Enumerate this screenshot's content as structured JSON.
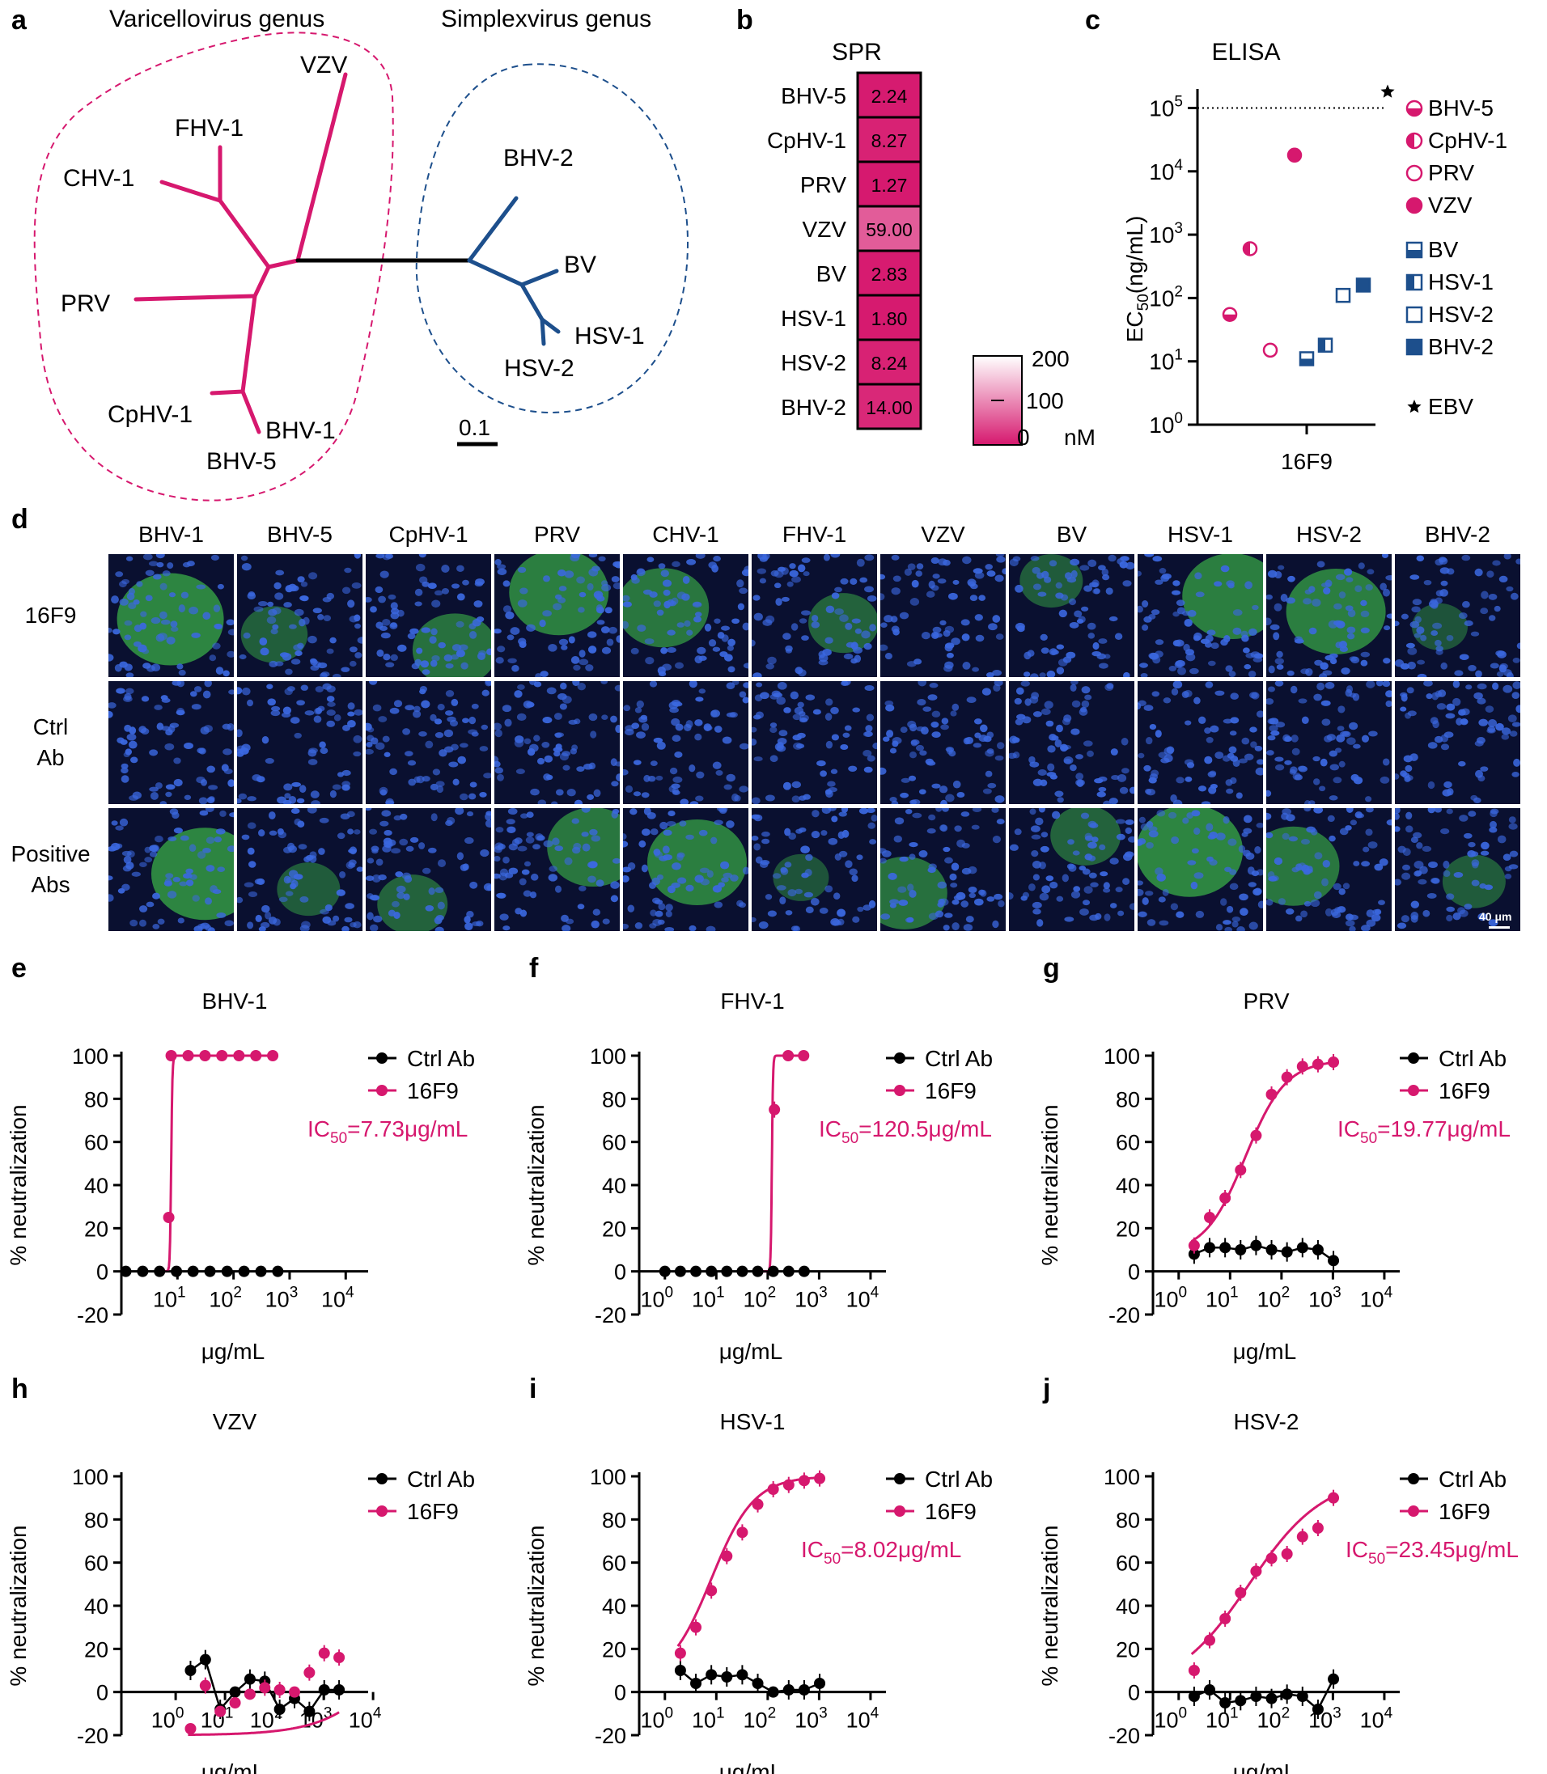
{
  "colors": {
    "pink": "#d6186e",
    "blue": "#1d4f8c",
    "black": "#000000",
    "micro_bg": "#0a1030",
    "nucleus": "#3b68e0",
    "gfp": "#3fbf4a"
  },
  "panel_a": {
    "letter": "a",
    "varicello_title": "Varicellovirus genus",
    "simplex_title": "Simplexvirus genus",
    "leaves": [
      "VZV",
      "FHV-1",
      "CHV-1",
      "PRV",
      "CpHV-1",
      "BHV-1",
      "BHV-5",
      "BHV-2",
      "BV",
      "HSV-1",
      "HSV-2"
    ],
    "scale": "0.1"
  },
  "panel_b": {
    "letter": "b",
    "title": "SPR",
    "rows": [
      {
        "label": "BHV-5",
        "value": "2.24"
      },
      {
        "label": "CpHV-1",
        "value": "8.27"
      },
      {
        "label": "PRV",
        "value": "1.27"
      },
      {
        "label": "VZV",
        "value": "59.00"
      },
      {
        "label": "BV",
        "value": "2.83"
      },
      {
        "label": "HSV-1",
        "value": "1.80"
      },
      {
        "label": "HSV-2",
        "value": "8.24"
      },
      {
        "label": "BHV-2",
        "value": "14.00"
      }
    ],
    "scale_ticks": [
      "200",
      "100",
      "0"
    ],
    "scale_unit": "nM"
  },
  "panel_c": {
    "letter": "c",
    "title": "ELISA",
    "ylabel_main": "EC",
    "ylabel_sub": "50",
    "ylabel_unit": "(ng/mL)",
    "y_ticks": [
      {
        "base": "10",
        "exp": "0"
      },
      {
        "base": "10",
        "exp": "1"
      },
      {
        "base": "10",
        "exp": "2"
      },
      {
        "base": "10",
        "exp": "3"
      },
      {
        "base": "10",
        "exp": "4"
      },
      {
        "base": "10",
        "exp": "5"
      }
    ],
    "xlabel": "16F9",
    "points": [
      {
        "name": "BHV-5",
        "value": 55,
        "shape": "circle",
        "fill": "half-bottom",
        "color": "pink"
      },
      {
        "name": "CpHV-1",
        "value": 600,
        "shape": "circle",
        "fill": "half-left",
        "color": "pink"
      },
      {
        "name": "PRV",
        "value": 15,
        "shape": "circle",
        "fill": "open",
        "color": "pink"
      },
      {
        "name": "VZV",
        "value": 18000,
        "shape": "circle",
        "fill": "full",
        "color": "pink"
      },
      {
        "name": "BV",
        "value": 11,
        "shape": "square",
        "fill": "half-bottom",
        "color": "blue"
      },
      {
        "name": "HSV-1",
        "value": 18,
        "shape": "square",
        "fill": "half-left",
        "color": "blue"
      },
      {
        "name": "HSV-2",
        "value": 110,
        "shape": "square",
        "fill": "open",
        "color": "blue"
      },
      {
        "name": "BHV-2",
        "value": 160,
        "shape": "square",
        "fill": "full",
        "color": "blue"
      },
      {
        "name": "EBV",
        "value": 150000,
        "shape": "star",
        "fill": "full",
        "color": "black"
      }
    ]
  },
  "panel_d": {
    "letter": "d",
    "columns": [
      "BHV-1",
      "BHV-5",
      "CpHV-1",
      "PRV",
      "CHV-1",
      "FHV-1",
      "VZV",
      "BV",
      "HSV-1",
      "HSV-2",
      "BHV-2"
    ],
    "rows": [
      {
        "label_lines": [
          "16F9"
        ],
        "gfp": [
          0.8,
          0.25,
          0.5,
          0.7,
          0.6,
          0.3,
          0,
          0.2,
          0.7,
          0.7,
          0.1
        ]
      },
      {
        "label_lines": [
          "Ctrl",
          "Ab"
        ],
        "gfp": [
          0,
          0,
          0,
          0,
          0,
          0,
          0,
          0,
          0,
          0,
          0
        ]
      },
      {
        "label_lines": [
          "Positive",
          "Abs"
        ],
        "gfp": [
          0.8,
          0.2,
          0.3,
          0.6,
          0.7,
          0.1,
          0.5,
          0.3,
          0.8,
          0.6,
          0.2
        ]
      }
    ],
    "scalebar": "40 μm"
  },
  "neut_panels": [
    {
      "letter": "e",
      "title": "BHV-1",
      "ylabel": "% neutralization",
      "xlabel": "μg/mL",
      "legend": [
        "Ctrl Ab",
        "16F9"
      ],
      "ic50_label": "IC",
      "ic50_sub": "50",
      "ic50_value": "=7.73μg/mL",
      "x_ticks": [
        {
          "b": "10",
          "e": "1"
        },
        {
          "b": "10",
          "e": "2"
        },
        {
          "b": "10",
          "e": "3"
        },
        {
          "b": "10",
          "e": "4"
        }
      ],
      "x_tick_exps": [
        1,
        2,
        3,
        4
      ],
      "xlim_log": [
        0,
        4.4
      ],
      "y_ticks": [
        "100",
        "80",
        "60",
        "40",
        "20",
        "0",
        "-20"
      ],
      "ab": {
        "x": [
          7.73,
          15.5,
          31,
          62,
          125,
          250,
          500
        ],
        "y": [
          100,
          100,
          100,
          100,
          100,
          100,
          100
        ],
        "first": {
          "x": 7,
          "y": 25
        }
      },
      "ctrl": {
        "x": [
          1.2,
          2.4,
          4.8,
          9.6,
          19,
          38,
          77,
          154,
          308,
          616
        ],
        "y": [
          0,
          0,
          0,
          0,
          0,
          0,
          0,
          0,
          0,
          0
        ]
      },
      "fit": {
        "ic50": 7.73,
        "hill": 40,
        "top": 100,
        "bottom": 0
      }
    },
    {
      "letter": "f",
      "title": "FHV-1",
      "ylabel": "% neutralization",
      "xlabel": "μg/mL",
      "legend": [
        "Ctrl Ab",
        "16F9"
      ],
      "ic50_label": "IC",
      "ic50_sub": "50",
      "ic50_value": "=120.5μg/mL",
      "x_ticks": [
        {
          "b": "10",
          "e": "0"
        },
        {
          "b": "10",
          "e": "1"
        },
        {
          "b": "10",
          "e": "2"
        },
        {
          "b": "10",
          "e": "3"
        },
        {
          "b": "10",
          "e": "4"
        }
      ],
      "x_tick_exps": [
        0,
        1,
        2,
        3,
        4
      ],
      "xlim_log": [
        -0.5,
        4.3
      ],
      "y_ticks": [
        "100",
        "80",
        "60",
        "40",
        "20",
        "0",
        "-20"
      ],
      "ab": {
        "x": [
          135,
          250,
          500
        ],
        "y": [
          75,
          100,
          100
        ]
      },
      "ctrl": {
        "x": [
          1,
          2,
          4,
          8,
          16,
          32,
          64,
          128,
          256,
          512
        ],
        "y": [
          0,
          0,
          0,
          0,
          0,
          0,
          0,
          0,
          0,
          0
        ]
      },
      "fit": {
        "ic50": 120.5,
        "hill": 40,
        "top": 100,
        "bottom": 0
      }
    },
    {
      "letter": "g",
      "title": "PRV",
      "ylabel": "% neutralization",
      "xlabel": "μg/mL",
      "legend": [
        "Ctrl Ab",
        "16F9"
      ],
      "ic50_label": "IC",
      "ic50_sub": "50",
      "ic50_value": "=19.77μg/mL",
      "x_ticks": [
        {
          "b": "10",
          "e": "0"
        },
        {
          "b": "10",
          "e": "1"
        },
        {
          "b": "10",
          "e": "2"
        },
        {
          "b": "10",
          "e": "3"
        },
        {
          "b": "10",
          "e": "4"
        }
      ],
      "x_tick_exps": [
        0,
        1,
        2,
        3,
        4
      ],
      "xlim_log": [
        -0.5,
        4.3
      ],
      "y_ticks": [
        "100",
        "80",
        "60",
        "40",
        "20",
        "0",
        "-20"
      ],
      "ab": {
        "x": [
          2,
          4,
          8,
          16,
          32,
          64,
          128,
          256,
          512,
          1024
        ],
        "y": [
          12,
          25,
          34,
          47,
          63,
          82,
          90,
          95,
          96,
          97
        ]
      },
      "ctrl": {
        "x": [
          2,
          4,
          8,
          16,
          32,
          64,
          128,
          256,
          512,
          1024
        ],
        "y": [
          8,
          11,
          11,
          10,
          12,
          10,
          9,
          11,
          10,
          5
        ]
      },
      "fit": {
        "ic50": 19.77,
        "hill": 1.1,
        "top": 98,
        "bottom": 8
      }
    },
    {
      "letter": "h",
      "title": "VZV",
      "ylabel": "% neutralization",
      "xlabel": "μg/mL",
      "legend": [
        "Ctrl Ab",
        "16F9"
      ],
      "ic50_label": "",
      "ic50_sub": "",
      "ic50_value": "",
      "x_ticks": [
        {
          "b": "10",
          "e": "0"
        },
        {
          "b": "10",
          "e": "1"
        },
        {
          "b": "10",
          "e": "2"
        },
        {
          "b": "10",
          "e": "3"
        },
        {
          "b": "10",
          "e": "4"
        }
      ],
      "x_tick_exps": [
        0,
        1,
        2,
        3,
        4
      ],
      "xlim_log": [
        -1.1,
        3.9
      ],
      "y_ticks": [
        "100",
        "80",
        "60",
        "40",
        "20",
        "0",
        "-20"
      ],
      "ab": {
        "x": [
          2,
          4,
          8,
          16,
          32,
          64,
          128,
          256,
          512,
          1024,
          2048
        ],
        "y": [
          -17,
          3,
          -9,
          -5,
          -1,
          2,
          1,
          0,
          9,
          18,
          16
        ]
      },
      "ctrl": {
        "x": [
          2,
          4,
          8,
          16,
          32,
          64,
          128,
          256,
          512,
          1024,
          2048
        ],
        "y": [
          10,
          15,
          -8,
          0,
          6,
          5,
          -8,
          -3,
          -9,
          1,
          1
        ]
      },
      "fit": {
        "ic50": 100000,
        "hill": 0.6,
        "top": 100,
        "bottom": -20
      }
    },
    {
      "letter": "i",
      "title": "HSV-1",
      "ylabel": "% neutralization",
      "xlabel": "μg/mL",
      "legend": [
        "Ctrl Ab",
        "16F9"
      ],
      "ic50_label": "IC",
      "ic50_sub": "50",
      "ic50_value": "=8.02μg/mL",
      "x_ticks": [
        {
          "b": "10",
          "e": "0"
        },
        {
          "b": "10",
          "e": "1"
        },
        {
          "b": "10",
          "e": "2"
        },
        {
          "b": "10",
          "e": "3"
        },
        {
          "b": "10",
          "e": "4"
        }
      ],
      "x_tick_exps": [
        0,
        1,
        2,
        3,
        4
      ],
      "xlim_log": [
        -0.5,
        4.3
      ],
      "y_ticks": [
        "100",
        "80",
        "60",
        "40",
        "20",
        "0",
        "-20"
      ],
      "ab": {
        "x": [
          2,
          4,
          8,
          16,
          32,
          64,
          128,
          256,
          512,
          1024
        ],
        "y": [
          18,
          30,
          47,
          63,
          74,
          87,
          94,
          96,
          98,
          99
        ]
      },
      "ctrl": {
        "x": [
          2,
          4,
          8,
          16,
          32,
          64,
          128,
          256,
          512,
          1024
        ],
        "y": [
          10,
          4,
          8,
          7,
          8,
          4,
          0,
          1,
          1,
          4
        ]
      },
      "fit": {
        "ic50": 8.02,
        "hill": 1.05,
        "top": 100,
        "bottom": 5
      }
    },
    {
      "letter": "j",
      "title": "HSV-2",
      "ylabel": "% neutralization",
      "xlabel": "μg/mL",
      "legend": [
        "Ctrl Ab",
        "16F9"
      ],
      "ic50_label": "IC",
      "ic50_sub": "50",
      "ic50_value": "=23.45μg/mL",
      "x_ticks": [
        {
          "b": "10",
          "e": "0"
        },
        {
          "b": "10",
          "e": "1"
        },
        {
          "b": "10",
          "e": "2"
        },
        {
          "b": "10",
          "e": "3"
        },
        {
          "b": "10",
          "e": "4"
        }
      ],
      "x_tick_exps": [
        0,
        1,
        2,
        3,
        4
      ],
      "xlim_log": [
        -0.5,
        4.3
      ],
      "y_ticks": [
        "100",
        "80",
        "60",
        "40",
        "20",
        "0",
        "-20"
      ],
      "ab": {
        "x": [
          2,
          4,
          8,
          16,
          32,
          64,
          128,
          256,
          512,
          1024
        ],
        "y": [
          10,
          24,
          34,
          46,
          56,
          62,
          64,
          72,
          76,
          90
        ]
      },
      "ctrl": {
        "x": [
          2,
          4,
          8,
          16,
          32,
          64,
          128,
          256,
          512,
          1024
        ],
        "y": [
          -2,
          1,
          -5,
          -4,
          -2,
          -3,
          -1,
          -2,
          -8,
          6
        ]
      },
      "fit": {
        "ic50": 23.45,
        "hill": 0.6,
        "top": 100,
        "bottom": 0
      }
    }
  ]
}
